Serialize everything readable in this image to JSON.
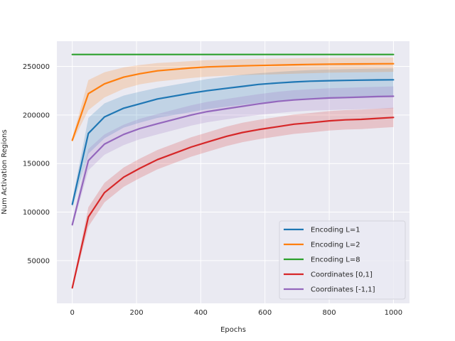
{
  "chart_data": {
    "type": "line",
    "title": "",
    "xlabel": "Epochs",
    "ylabel": "Num Activation Regions",
    "xlim": [
      -48,
      1050
    ],
    "ylim": [
      6000,
      276000
    ],
    "xticks": [
      0,
      200,
      400,
      600,
      800,
      1000
    ],
    "yticks": [
      50000,
      100000,
      150000,
      200000,
      250000
    ],
    "grid": true,
    "legend_position": "lower-right",
    "colors": {
      "background": "#eaeaf2",
      "grid": "#ffffff"
    },
    "x": [
      0,
      50,
      100,
      160,
      210,
      265,
      370,
      420,
      480,
      530,
      580,
      640,
      690,
      740,
      800,
      850,
      900,
      950,
      1000
    ],
    "series": [
      {
        "name": "Encoding L=1",
        "color": "#1f77b4",
        "values": [
          108000,
          181000,
          198000,
          207000,
          211500,
          216500,
          222500,
          225000,
          227500,
          229500,
          231500,
          233000,
          234000,
          234800,
          235300,
          235600,
          235900,
          236100,
          236300
        ],
        "lower": [
          104000,
          160000,
          176000,
          187000,
          192000,
          197000,
          203000,
          206000,
          208500,
          210500,
          212500,
          214000,
          215000,
          216000,
          216500,
          217000,
          217500,
          218000,
          218500
        ],
        "upper": [
          112000,
          197000,
          212000,
          220000,
          224000,
          228000,
          234000,
          237000,
          239500,
          241500,
          243000,
          244500,
          245500,
          246300,
          246800,
          247200,
          247500,
          247800,
          248000
        ]
      },
      {
        "name": "Encoding L=2",
        "color": "#ff7f0e",
        "values": [
          174000,
          222000,
          232000,
          239000,
          242500,
          245500,
          248500,
          249500,
          250200,
          250600,
          251000,
          251400,
          251800,
          252100,
          252400,
          252500,
          252600,
          252700,
          252800
        ],
        "lower": [
          172000,
          205000,
          218000,
          227000,
          231500,
          234500,
          238000,
          239500,
          240500,
          241000,
          241500,
          242000,
          242500,
          243000,
          243500,
          243800,
          244000,
          244200,
          244500
        ],
        "upper": [
          176000,
          236000,
          244000,
          249000,
          251500,
          253500,
          255500,
          256500,
          257000,
          257400,
          257800,
          258100,
          258400,
          258600,
          258800,
          258900,
          259000,
          259100,
          259200
        ]
      },
      {
        "name": "Encoding L=8",
        "color": "#2ca02c",
        "values": [
          262300,
          262300,
          262300,
          262300,
          262300,
          262300,
          262300,
          262300,
          262300,
          262300,
          262300,
          262300,
          262300,
          262300,
          262300,
          262300,
          262300,
          262300,
          262300
        ],
        "lower": [
          262000,
          262000,
          262000,
          262000,
          262000,
          262000,
          262000,
          262000,
          262000,
          262000,
          262000,
          262000,
          262000,
          262000,
          262000,
          262000,
          262000,
          262000,
          262000
        ],
        "upper": [
          262600,
          262600,
          262600,
          262600,
          262600,
          262600,
          262600,
          262600,
          262600,
          262600,
          262600,
          262600,
          262600,
          262600,
          262600,
          262600,
          262600,
          262600,
          262600
        ]
      },
      {
        "name": "Coordinates [0,1]",
        "color": "#d62728",
        "values": [
          22000,
          95000,
          120000,
          136000,
          145000,
          154000,
          167000,
          172000,
          178000,
          182000,
          185000,
          188000,
          190500,
          192000,
          194000,
          195000,
          195500,
          196500,
          197500
        ],
        "lower": [
          20000,
          85000,
          110000,
          126000,
          135000,
          144000,
          157000,
          162000,
          168000,
          172000,
          175000,
          178000,
          180500,
          182000,
          184000,
          185000,
          185500,
          186500,
          187500
        ],
        "upper": [
          24000,
          105000,
          130000,
          146000,
          155000,
          164000,
          177000,
          182000,
          188000,
          192000,
          195000,
          198000,
          200500,
          202000,
          204000,
          205000,
          205500,
          206500,
          207500
        ]
      },
      {
        "name": "Coordinates [-1,1]",
        "color": "#9467bd",
        "values": [
          87000,
          153000,
          170000,
          180000,
          186000,
          191000,
          200000,
          203500,
          206500,
          209000,
          211500,
          214000,
          215500,
          216500,
          217500,
          218000,
          218500,
          219000,
          219300
        ],
        "lower": [
          84000,
          143000,
          159000,
          169000,
          175000,
          180000,
          189000,
          192500,
          195500,
          198000,
          200000,
          202000,
          203500,
          204500,
          205000,
          205500,
          206000,
          206500,
          206800
        ],
        "upper": [
          90000,
          165000,
          180000,
          190000,
          196000,
          201000,
          210000,
          213500,
          216500,
          219000,
          221500,
          224000,
          225500,
          226500,
          227500,
          228000,
          228500,
          229000,
          229500
        ]
      }
    ]
  }
}
